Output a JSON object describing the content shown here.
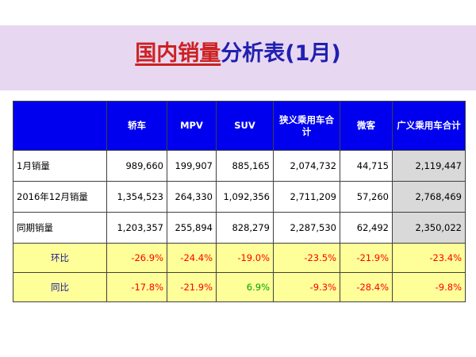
{
  "title": {
    "highlight": "国内销量",
    "rest": "分析表(1月)"
  },
  "table": {
    "columns": [
      "",
      "轿车",
      "MPV",
      "SUV",
      "狭义乘用车合计",
      "微客",
      "广义乘用车合计"
    ],
    "rows": [
      {
        "label": "1月销量",
        "values": [
          "989,660",
          "199,907",
          "885,165",
          "2,074,732",
          "44,715",
          "2,119,447"
        ]
      },
      {
        "label": "2016年12月销量",
        "values": [
          "1,354,523",
          "264,330",
          "1,092,356",
          "2,711,209",
          "57,260",
          "2,768,469"
        ]
      },
      {
        "label": "同期销量",
        "values": [
          "1,203,357",
          "255,894",
          "828,279",
          "2,287,530",
          "62,492",
          "2,350,022"
        ]
      },
      {
        "label": "环比",
        "values": [
          "-26.9%",
          "-24.4%",
          "-19.0%",
          "-23.5%",
          "-21.9%",
          "-23.4%"
        ]
      },
      {
        "label": "同比",
        "values": [
          "-17.8%",
          "-21.9%",
          "6.9%",
          "-9.3%",
          "-28.4%",
          "-9.8%"
        ]
      }
    ]
  },
  "colors": {
    "title_band": "#e8d7f1",
    "title_highlight": "#cc2222",
    "title_rest": "#2020b0",
    "header_bg": "#0000ee",
    "ratio_row_bg": "#ffff99",
    "negative_value": "#ff0000",
    "positive_value": "#00a000",
    "total_column_bg": "#d9d9d9"
  }
}
